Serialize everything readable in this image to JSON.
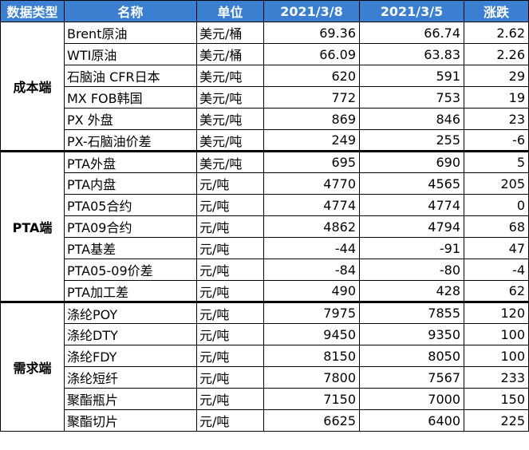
{
  "headers": [
    "数据类型",
    "名称",
    "单位",
    "2021/3/8",
    "2021/3/5",
    "涨跌"
  ],
  "colors": {
    "header_bg": "#3a7fd0",
    "header_text": "#ffffff",
    "border": "#000000"
  },
  "groups": [
    {
      "category": "成本端",
      "rows": [
        {
          "name": "Brent原油",
          "unit": "美元/桶",
          "v1": "69.36",
          "v2": "66.74",
          "change": "2.62"
        },
        {
          "name": "WTI原油",
          "unit": "美元/桶",
          "v1": "66.09",
          "v2": "63.83",
          "change": "2.26"
        },
        {
          "name": "石脑油 CFR日本",
          "unit": "美元/吨",
          "v1": "620",
          "v2": "591",
          "change": "29"
        },
        {
          "name": "MX FOB韩国",
          "unit": "美元/吨",
          "v1": "772",
          "v2": "753",
          "change": "19"
        },
        {
          "name": "PX  外盘",
          "unit": "美元/吨",
          "v1": "869",
          "v2": "846",
          "change": "23"
        },
        {
          "name": "PX-石脑油价差",
          "unit": "美元/吨",
          "v1": "249",
          "v2": "255",
          "change": "-6"
        }
      ]
    },
    {
      "category": "PTA端",
      "rows": [
        {
          "name": "PTA外盘",
          "unit": "美元/吨",
          "v1": "695",
          "v2": "690",
          "change": "5"
        },
        {
          "name": "PTA内盘",
          "unit": "元/吨",
          "v1": "4770",
          "v2": "4565",
          "change": "205"
        },
        {
          "name": "PTA05合约",
          "unit": "元/吨",
          "v1": "4774",
          "v2": "4774",
          "change": "0"
        },
        {
          "name": "PTA09合约",
          "unit": "元/吨",
          "v1": "4862",
          "v2": "4794",
          "change": "68"
        },
        {
          "name": "PTA基差",
          "unit": "元/吨",
          "v1": "-44",
          "v2": "-91",
          "change": "47"
        },
        {
          "name": "PTA05-09价差",
          "unit": "元/吨",
          "v1": "-84",
          "v2": "-80",
          "change": "-4"
        },
        {
          "name": "PTA加工差",
          "unit": "元/吨",
          "v1": "490",
          "v2": "428",
          "change": "62"
        }
      ]
    },
    {
      "category": "需求端",
      "rows": [
        {
          "name": "涤纶POY",
          "unit": "元/吨",
          "v1": "7975",
          "v2": "7855",
          "change": "120"
        },
        {
          "name": "涤纶DTY",
          "unit": "元/吨",
          "v1": "9450",
          "v2": "9350",
          "change": "100"
        },
        {
          "name": "涤纶FDY",
          "unit": "元/吨",
          "v1": "8150",
          "v2": "8050",
          "change": "100"
        },
        {
          "name": "涤纶短纤",
          "unit": "元/吨",
          "v1": "7800",
          "v2": "7567",
          "change": "233"
        },
        {
          "name": "聚酯瓶片",
          "unit": "元/吨",
          "v1": "7150",
          "v2": "7000",
          "change": "150"
        },
        {
          "name": "聚酯切片",
          "unit": "元/吨",
          "v1": "6625",
          "v2": "6400",
          "change": "225"
        }
      ]
    }
  ]
}
